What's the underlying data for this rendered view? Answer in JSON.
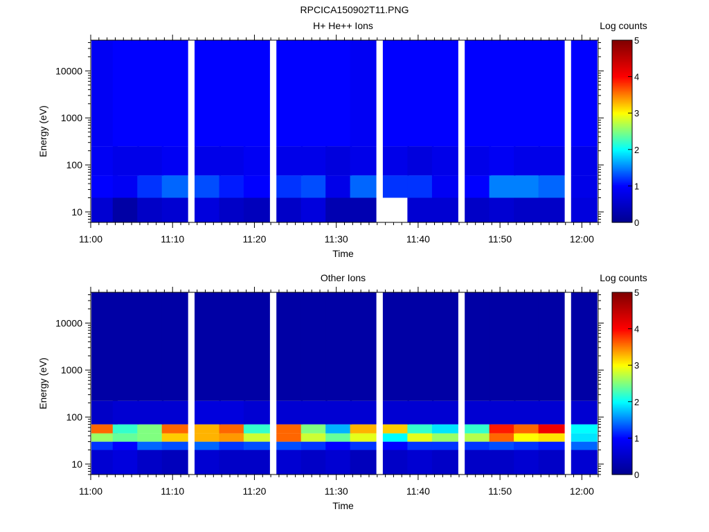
{
  "figure_title": "RPCICA150902T11.PNG",
  "colors": {
    "missing": "#ffffff",
    "colormap": [
      "#00008f",
      "#0000ff",
      "#00ffff",
      "#ffff00",
      "#ff0000",
      "#800000"
    ]
  },
  "chart_data": [
    {
      "type": "heatmap",
      "title": "H+ He++ Ions",
      "xlabel": "Time",
      "ylabel": "Energy (eV)",
      "yscale": "log",
      "ylim": [
        6,
        45000
      ],
      "xlim": [
        "11:00",
        "12:02"
      ],
      "xticks": [
        "11:00",
        "11:10",
        "11:20",
        "11:30",
        "11:40",
        "11:50",
        "12:00"
      ],
      "yticks": [
        {
          "value": 10,
          "label": "10"
        },
        {
          "value": 100,
          "label": "100"
        },
        {
          "value": 1000,
          "label": "1000"
        },
        {
          "value": 10000,
          "label": "10000"
        }
      ],
      "time_columns": [
        "11:01",
        "11:04",
        "11:07",
        "11:10",
        "11:14",
        "11:17",
        "11:20",
        "11:24",
        "11:27",
        "11:30",
        "11:33",
        "11:37",
        "11:40",
        "11:43",
        "11:47",
        "11:50",
        "11:53",
        "11:56",
        "12:00"
      ],
      "energy_bands_eV": [
        {
          "from": 6,
          "to": 20,
          "values": [
            0.6,
            0.2,
            0.5,
            0.6,
            0.7,
            0.5,
            0.4,
            0.5,
            0.7,
            0.3,
            0.3,
            null,
            0.6,
            0.6,
            0.5,
            0.6,
            0.5,
            0.5,
            0.7
          ]
        },
        {
          "from": 20,
          "to": 60,
          "values": [
            1.0,
            0.9,
            1.2,
            1.4,
            1.3,
            1.1,
            1.0,
            1.2,
            1.3,
            0.8,
            1.4,
            1.2,
            1.2,
            0.9,
            1.0,
            1.5,
            1.5,
            1.4,
            0.8
          ]
        },
        {
          "from": 60,
          "to": 250,
          "values": [
            0.9,
            0.8,
            0.8,
            0.9,
            0.8,
            0.8,
            0.9,
            0.8,
            0.8,
            0.7,
            0.8,
            0.8,
            0.7,
            0.8,
            0.8,
            0.9,
            0.8,
            0.8,
            0.8
          ]
        },
        {
          "from": 250,
          "to": 45000,
          "values": [
            0.9,
            1.0,
            1.0,
            1.0,
            1.0,
            1.0,
            1.0,
            1.0,
            1.0,
            1.0,
            0.9,
            1.0,
            1.0,
            1.0,
            1.0,
            1.0,
            1.0,
            1.0,
            1.0
          ]
        }
      ],
      "colorbar": {
        "label": "Log counts",
        "range": [
          0,
          5
        ],
        "ticks": [
          "0",
          "1",
          "2",
          "3",
          "4",
          "5"
        ]
      }
    },
    {
      "type": "heatmap",
      "title": "Other Ions",
      "xlabel": "Time",
      "ylabel": "Energy (eV)",
      "yscale": "log",
      "ylim": [
        6,
        45000
      ],
      "xlim": [
        "11:00",
        "12:02"
      ],
      "xticks": [
        "11:00",
        "11:10",
        "11:20",
        "11:30",
        "11:40",
        "11:50",
        "12:00"
      ],
      "yticks": [
        {
          "value": 10,
          "label": "10"
        },
        {
          "value": 100,
          "label": "100"
        },
        {
          "value": 1000,
          "label": "1000"
        },
        {
          "value": 10000,
          "label": "10000"
        }
      ],
      "time_columns": [
        "11:01",
        "11:04",
        "11:07",
        "11:10",
        "11:14",
        "11:17",
        "11:20",
        "11:24",
        "11:27",
        "11:30",
        "11:33",
        "11:37",
        "11:40",
        "11:43",
        "11:47",
        "11:50",
        "11:53",
        "11:56",
        "12:00"
      ],
      "energy_bands_eV": [
        {
          "from": 6,
          "to": 20,
          "values": [
            0.6,
            0.7,
            0.5,
            0.4,
            0.6,
            0.5,
            0.5,
            0.6,
            0.5,
            0.6,
            0.4,
            0.5,
            0.6,
            0.5,
            0.5,
            0.5,
            0.6,
            0.5,
            0.6
          ]
        },
        {
          "from": 20,
          "to": 30,
          "values": [
            1.2,
            1.0,
            1.4,
            1.3,
            1.4,
            1.2,
            1.3,
            1.3,
            1.2,
            1.0,
            1.2,
            1.0,
            1.2,
            1.2,
            1.2,
            1.3,
            1.2,
            1.1,
            1.4
          ]
        },
        {
          "from": 30,
          "to": 45,
          "values": [
            2.6,
            2.4,
            2.5,
            3.2,
            3.3,
            3.4,
            2.8,
            3.6,
            2.8,
            2.4,
            2.9,
            2.0,
            2.9,
            2.6,
            2.7,
            3.6,
            3.0,
            3.1,
            1.9
          ]
        },
        {
          "from": 45,
          "to": 70,
          "values": [
            3.6,
            2.2,
            2.5,
            3.6,
            3.3,
            3.6,
            2.2,
            3.6,
            2.5,
            1.7,
            3.3,
            3.2,
            2.2,
            1.9,
            2.2,
            3.9,
            3.6,
            4.1,
            2.0
          ]
        },
        {
          "from": 70,
          "to": 220,
          "values": [
            0.5,
            0.6,
            0.6,
            0.6,
            0.7,
            0.7,
            0.6,
            0.6,
            0.6,
            0.6,
            0.6,
            0.6,
            0.6,
            0.6,
            0.6,
            0.6,
            0.6,
            0.6,
            0.6
          ]
        },
        {
          "from": 220,
          "to": 45000,
          "values": [
            0.2,
            0.2,
            0.2,
            0.2,
            0.2,
            0.2,
            0.2,
            0.2,
            0.2,
            0.2,
            0.2,
            0.2,
            0.2,
            0.2,
            0.2,
            0.2,
            0.2,
            0.2,
            0.2
          ]
        }
      ],
      "colorbar": {
        "label": "Log counts",
        "range": [
          0,
          5
        ],
        "ticks": [
          "0",
          "1",
          "2",
          "3",
          "4",
          "5"
        ]
      }
    }
  ]
}
